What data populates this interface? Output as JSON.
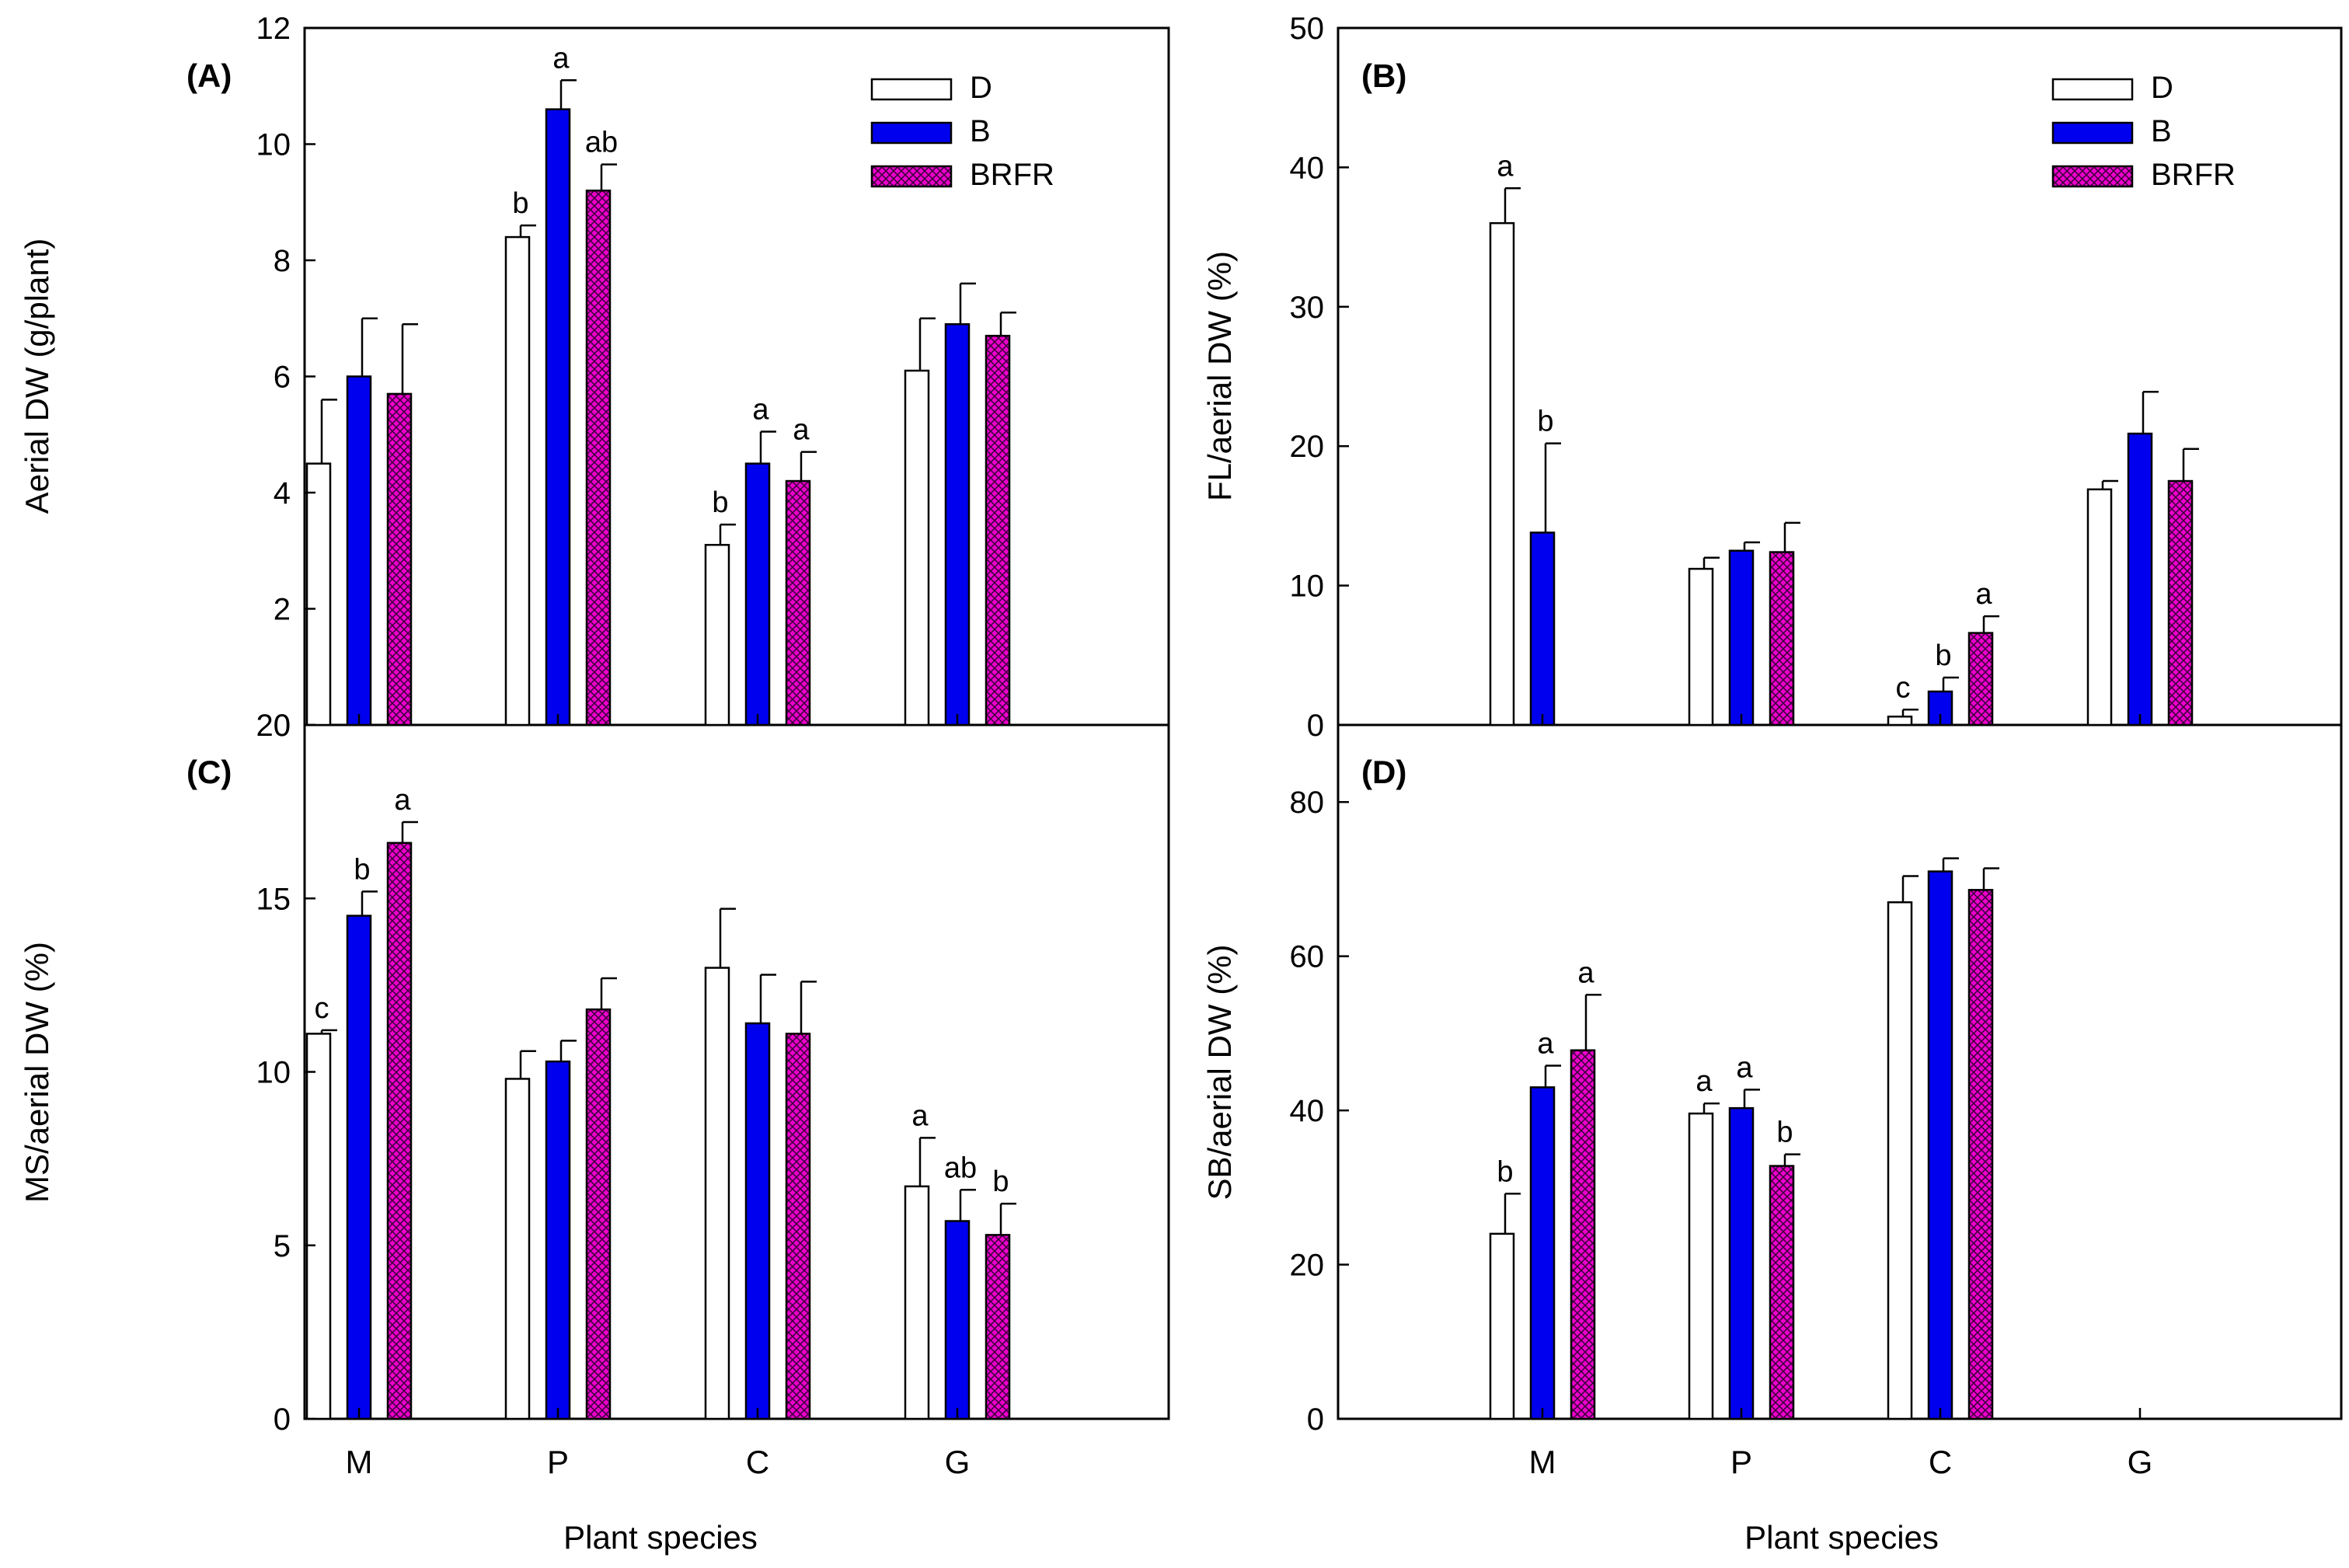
{
  "figure": {
    "xlabel": "Plant species",
    "species": [
      "M",
      "P",
      "C",
      "G"
    ]
  },
  "legend": {
    "entries": [
      {
        "label": "D",
        "series": "D"
      },
      {
        "label": "B",
        "series": "B"
      },
      {
        "label": "BRFR",
        "series": "BRFR"
      }
    ]
  },
  "colors": {
    "D": "#ffffff",
    "B": "#0000ee",
    "BRFR": "#ee00cc",
    "BRFR_hatch": "#400040",
    "axis": "#000000"
  },
  "chart_data": [
    {
      "type": "bar",
      "panel_label": "(A)",
      "ylabel": "Aerial DW (g/plant)",
      "xlabel": "Plant species",
      "categories": [
        "M",
        "P",
        "C",
        "G"
      ],
      "ylim": [
        0,
        12
      ],
      "yticks": [
        0,
        2,
        4,
        6,
        8,
        10,
        12
      ],
      "legend": "top-right",
      "series": [
        {
          "name": "D",
          "values": [
            4.5,
            8.4,
            3.1,
            6.1
          ],
          "errors": [
            1.1,
            0.2,
            0.35,
            0.9
          ],
          "letters": [
            "",
            "b",
            "b",
            ""
          ]
        },
        {
          "name": "B",
          "values": [
            6.0,
            10.6,
            4.5,
            6.9
          ],
          "errors": [
            1.0,
            0.5,
            0.55,
            0.7
          ],
          "letters": [
            "",
            "a",
            "a",
            ""
          ]
        },
        {
          "name": "BRFR",
          "values": [
            5.7,
            9.2,
            4.2,
            6.7
          ],
          "errors": [
            1.2,
            0.45,
            0.5,
            0.4
          ],
          "letters": [
            "",
            "ab",
            "a",
            ""
          ]
        }
      ]
    },
    {
      "type": "bar",
      "panel_label": "(B)",
      "ylabel": "FL/aerial DW (%)",
      "xlabel": "Plant species",
      "categories": [
        "M",
        "P",
        "C",
        "G"
      ],
      "ylim": [
        0,
        50
      ],
      "yticks": [
        0,
        10,
        20,
        30,
        40,
        50
      ],
      "legend": "top-right",
      "series": [
        {
          "name": "D",
          "values": [
            36.0,
            11.2,
            0.6,
            16.9
          ],
          "errors": [
            2.5,
            0.8,
            0.5,
            0.6
          ],
          "letters": [
            "a",
            "",
            "c",
            ""
          ]
        },
        {
          "name": "B",
          "values": [
            13.8,
            12.5,
            2.4,
            20.9
          ],
          "errors": [
            6.4,
            0.6,
            1.0,
            3.0
          ],
          "letters": [
            "b",
            "",
            "b",
            ""
          ]
        },
        {
          "name": "BRFR",
          "values": [
            null,
            12.4,
            6.6,
            17.5
          ],
          "errors": [
            null,
            2.1,
            1.2,
            2.3
          ],
          "letters": [
            "",
            "",
            "a",
            ""
          ]
        }
      ]
    },
    {
      "type": "bar",
      "panel_label": "(C)",
      "ylabel": "MS/aerial DW (%)",
      "xlabel": "Plant species",
      "categories": [
        "M",
        "P",
        "C",
        "G"
      ],
      "ylim": [
        0,
        20
      ],
      "yticks": [
        0,
        5,
        10,
        15,
        20
      ],
      "legend": "none",
      "series": [
        {
          "name": "D",
          "values": [
            11.1,
            9.8,
            13.0,
            6.7
          ],
          "errors": [
            0.1,
            0.8,
            1.7,
            1.4
          ],
          "letters": [
            "c",
            "",
            "",
            "a"
          ]
        },
        {
          "name": "B",
          "values": [
            14.5,
            10.3,
            11.4,
            5.7
          ],
          "errors": [
            0.7,
            0.6,
            1.4,
            0.9
          ],
          "letters": [
            "b",
            "",
            "",
            "ab"
          ]
        },
        {
          "name": "BRFR",
          "values": [
            16.6,
            11.8,
            11.1,
            5.3
          ],
          "errors": [
            0.6,
            0.9,
            1.5,
            0.9
          ],
          "letters": [
            "a",
            "",
            "",
            "b"
          ]
        }
      ]
    },
    {
      "type": "bar",
      "panel_label": "(D)",
      "ylabel": "SB/aerial DW (%)",
      "xlabel": "Plant species",
      "categories": [
        "M",
        "P",
        "C",
        "G"
      ],
      "ylim": [
        0,
        90
      ],
      "yticks": [
        0,
        20,
        40,
        60,
        80
      ],
      "legend": "none",
      "series": [
        {
          "name": "D",
          "values": [
            24.0,
            39.6,
            67.0,
            null
          ],
          "errors": [
            5.2,
            1.3,
            3.4,
            null
          ],
          "letters": [
            "b",
            "a",
            "",
            ""
          ]
        },
        {
          "name": "B",
          "values": [
            43.0,
            40.3,
            71.0,
            null
          ],
          "errors": [
            2.8,
            2.4,
            1.7,
            null
          ],
          "letters": [
            "a",
            "a",
            "",
            ""
          ]
        },
        {
          "name": "BRFR",
          "values": [
            47.8,
            32.8,
            68.6,
            null
          ],
          "errors": [
            7.2,
            1.5,
            2.8,
            null
          ],
          "letters": [
            "a",
            "b",
            "",
            ""
          ]
        }
      ]
    }
  ]
}
